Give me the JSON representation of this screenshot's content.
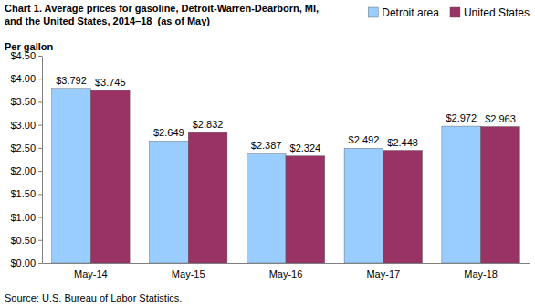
{
  "chart_data": {
    "type": "bar",
    "title": "Chart 1. Average prices for gasoline, Detroit-Warren-Dearborn, MI, and the United States, 2014–18  (as of May)",
    "y_label": "Per gallon",
    "source": "Source: U.S. Bureau of Labor Statistics.",
    "categories": [
      "May-14",
      "May-15",
      "May-16",
      "May-17",
      "May-18"
    ],
    "series": [
      {
        "name": "Detroit area",
        "color": "#99ccff",
        "values": [
          3.792,
          2.649,
          2.387,
          2.492,
          2.972
        ],
        "value_labels": [
          "$3.792",
          "$2.649",
          "$2.387",
          "$2.492",
          "$2.972"
        ]
      },
      {
        "name": "United States",
        "color": "#993366",
        "values": [
          3.745,
          2.832,
          2.324,
          2.448,
          2.963
        ],
        "value_labels": [
          "$3.745",
          "$2.832",
          "$2.324",
          "$2.448",
          "$2.963"
        ]
      }
    ],
    "ylim": [
      0,
      4.5
    ],
    "yticks": [
      {
        "value": 0,
        "label": "$0.00"
      },
      {
        "value": 0.5,
        "label": "$0.50"
      },
      {
        "value": 1,
        "label": "$1.00"
      },
      {
        "value": 1.5,
        "label": "$1.50"
      },
      {
        "value": 2,
        "label": "$2.00"
      },
      {
        "value": 2.5,
        "label": "$2.50"
      },
      {
        "value": 3,
        "label": "$3.00"
      },
      {
        "value": 3.5,
        "label": "$3.50"
      },
      {
        "value": 4,
        "label": "$4.00"
      },
      {
        "value": 4.5,
        "label": "$4.50"
      }
    ],
    "grid": false,
    "legend": "top-right",
    "data_labels": true
  }
}
